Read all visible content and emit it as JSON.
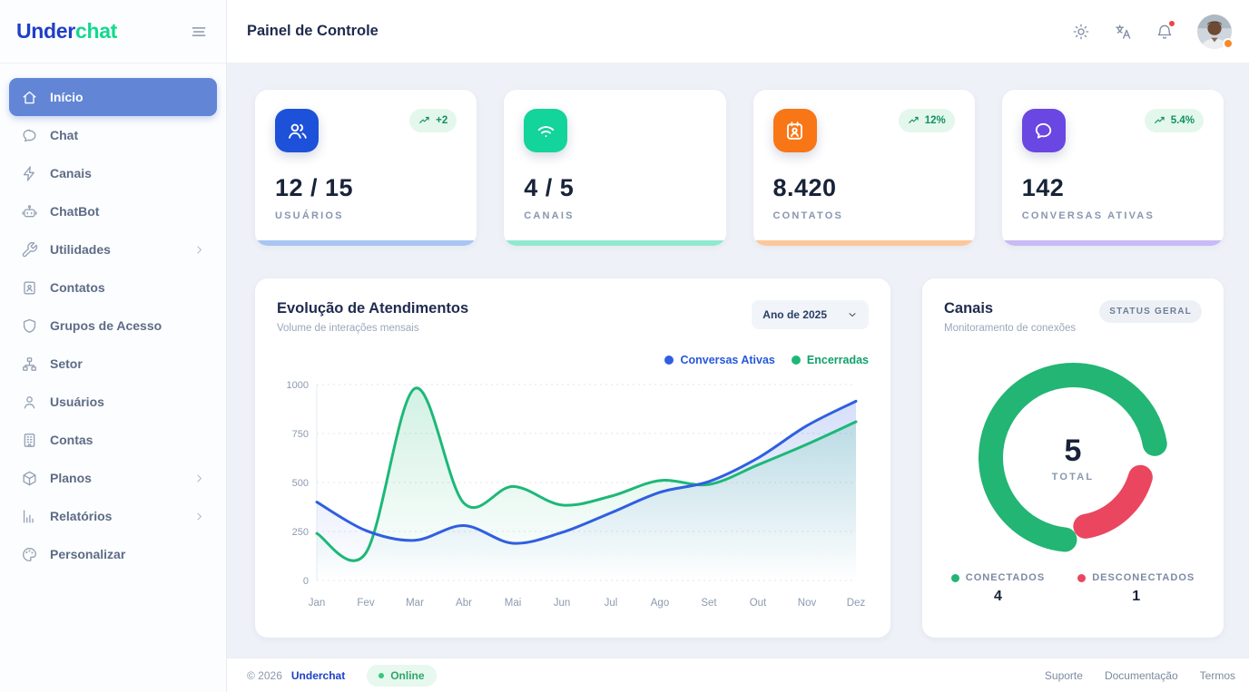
{
  "brand": {
    "name_primary": "Under",
    "name_secondary": "chat"
  },
  "header": {
    "title": "Painel de Controle"
  },
  "sidebar": {
    "items": [
      {
        "label": "Início",
        "icon": "home-icon",
        "active": true
      },
      {
        "label": "Chat",
        "icon": "chat-icon"
      },
      {
        "label": "Canais",
        "icon": "zap-icon"
      },
      {
        "label": "ChatBot",
        "icon": "robot-icon"
      },
      {
        "label": "Utilidades",
        "icon": "wrench-icon",
        "has_children": true
      },
      {
        "label": "Contatos",
        "icon": "contact-book-icon"
      },
      {
        "label": "Grupos de Acesso",
        "icon": "shield-icon"
      },
      {
        "label": "Setor",
        "icon": "org-chart-icon"
      },
      {
        "label": "Usuários",
        "icon": "user-icon"
      },
      {
        "label": "Contas",
        "icon": "building-icon"
      },
      {
        "label": "Planos",
        "icon": "cube-icon",
        "has_children": true
      },
      {
        "label": "Relatórios",
        "icon": "bar-chart-icon",
        "has_children": true
      },
      {
        "label": "Personalizar",
        "icon": "palette-icon"
      }
    ]
  },
  "stats": {
    "cards": [
      {
        "icon": "users-icon",
        "color": "#1d51da",
        "accent": "#aac4f4",
        "badge": "+2",
        "value": "12 / 15",
        "label": "USUÁRIOS"
      },
      {
        "icon": "wifi-icon",
        "color": "#13d49b",
        "accent": "#90e9ce",
        "badge": "",
        "value": "4 / 5",
        "label": "CANAIS"
      },
      {
        "icon": "contact-card-icon",
        "color": "#f97616",
        "accent": "#fbc79c",
        "badge": "12%",
        "value": "8.420",
        "label": "CONTATOS"
      },
      {
        "icon": "chat-bubble-icon",
        "color": "#6a46e2",
        "accent": "#c8baf5",
        "badge": "5.4%",
        "value": "142",
        "label": "CONVERSAS ATIVAS"
      }
    ]
  },
  "chart_card": {
    "title": "Evolução de Atendimentos",
    "subtitle": "Volume de interações mensais",
    "year_filter": "Ano de 2025"
  },
  "canais_card": {
    "title": "Canais",
    "badge": "STATUS GERAL",
    "subtitle": "Monitoramento de conexões",
    "total_value": "5",
    "total_label": "TOTAL"
  },
  "chart_data": [
    {
      "type": "line",
      "title": "Evolução de Atendimentos",
      "x": [
        "Jan",
        "Fev",
        "Mar",
        "Abr",
        "Mai",
        "Jun",
        "Jul",
        "Ago",
        "Set",
        "Out",
        "Nov",
        "Dez"
      ],
      "series": [
        {
          "name": "Conversas Ativas",
          "color": "#2f5fe0",
          "values": [
            400,
            255,
            205,
            280,
            190,
            245,
            345,
            450,
            505,
            625,
            790,
            915
          ]
        },
        {
          "name": "Encerradas",
          "color": "#1db878",
          "values": [
            240,
            140,
            980,
            395,
            480,
            385,
            430,
            510,
            490,
            590,
            695,
            810
          ]
        }
      ],
      "ylim": [
        0,
        1000
      ],
      "yticks": [
        0,
        250,
        500,
        750,
        1000
      ],
      "grid": "dotted-horizontal",
      "legend_position": "top-right",
      "area_fill": true
    },
    {
      "type": "pie",
      "subtype": "donut",
      "title": "Canais",
      "labels": [
        "CONECTADOS",
        "DESCONECTADOS"
      ],
      "values": [
        4,
        1
      ],
      "colors": [
        "#22b573",
        "#ea4660"
      ],
      "center_total": 5,
      "legend": [
        {
          "label": "CONECTADOS",
          "value": "4",
          "color": "#22b573"
        },
        {
          "label": "DESCONECTADOS",
          "value": "1",
          "color": "#ea4660"
        }
      ]
    }
  ],
  "footer": {
    "copyright": "© 2026",
    "brand": "Underchat",
    "status": "Online",
    "links": [
      "Suporte",
      "Documentação",
      "Termos"
    ]
  }
}
